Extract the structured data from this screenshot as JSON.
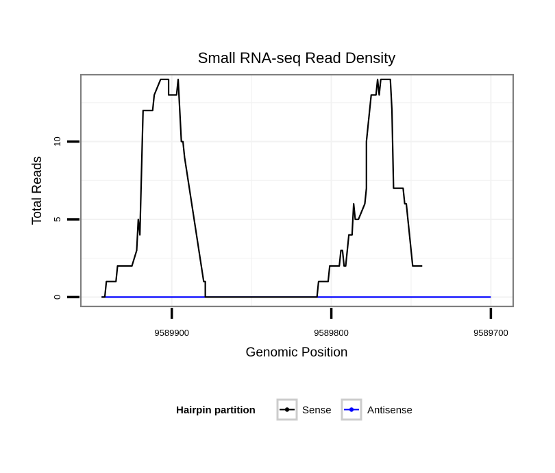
{
  "chart_data": {
    "type": "line",
    "title": "Small RNA-seq Read Density",
    "xlabel": "Genomic Position",
    "ylabel": "Total Reads",
    "xlim": [
      9589957,
      9589686
    ],
    "ylim": [
      -0.6,
      14.3
    ],
    "x_reversed": true,
    "x_ticks": [
      9589900,
      9589800,
      9589700
    ],
    "x_tick_labels": [
      "9589900",
      "9589800",
      "9589700"
    ],
    "y_ticks": [
      0,
      5,
      10
    ],
    "y_tick_labels": [
      "0",
      "5",
      "10"
    ],
    "grid": true,
    "legend": {
      "title": "Hairpin partition",
      "position": "bottom",
      "entries": [
        "Sense",
        "Antisense"
      ]
    },
    "colors": {
      "Sense": "#000000",
      "Antisense": "#0000ff",
      "panel_border": "#7f7f7f",
      "grid": "#f2f2f2"
    },
    "series": [
      {
        "name": "Sense",
        "x": [
          9589944,
          9589942,
          9589941,
          9589935,
          9589934,
          9589925,
          9589922,
          9589921,
          9589920,
          9589919,
          9589918,
          9589912,
          9589911,
          9589907,
          9589906,
          9589902,
          9589902,
          9589900,
          9589897,
          9589896,
          9589895,
          9589894,
          9589893,
          9589892,
          9589880,
          9589879,
          9589879,
          9589878,
          9589826,
          9589825,
          9589824,
          9589817,
          9589816,
          9589812,
          9589811,
          9589809,
          9589808,
          9589806,
          9589805,
          9589804,
          9589802,
          9589801,
          9589800,
          9589795,
          9589794,
          9589793,
          9589792,
          9589791,
          9589790,
          9589789,
          9589787,
          9589786,
          9589785,
          9589784,
          9589783,
          9589779,
          9589778,
          9589778,
          9589776,
          9589775,
          9589772,
          9589771,
          9589770,
          9589769,
          9589763,
          9589762,
          9589761,
          9589758,
          9589757,
          9589756,
          9589755,
          9589754,
          9589753,
          9589752,
          9589751,
          9589750,
          9589749,
          9589748,
          9589747,
          9589746,
          9589745,
          9589744,
          9589743
        ],
        "values": [
          0,
          0,
          1,
          1,
          2,
          2,
          3,
          5,
          4,
          8,
          12,
          12,
          13,
          14,
          14,
          14,
          13,
          13,
          13,
          14,
          12,
          10,
          10,
          9,
          1,
          1,
          0,
          0,
          0,
          0,
          0,
          0,
          0,
          0,
          0,
          0,
          1,
          1,
          1,
          1,
          1,
          2,
          2,
          2,
          3,
          3,
          2,
          2,
          3,
          4,
          4,
          6,
          5,
          5,
          5,
          6,
          7,
          10,
          12,
          13,
          13,
          14,
          13,
          14,
          14,
          12,
          7,
          7,
          7,
          7,
          7,
          6,
          6,
          5,
          4,
          3,
          2,
          2,
          2,
          2,
          2,
          2,
          2
        ]
      },
      {
        "name": "Antisense",
        "x": [
          9589944,
          9589700
        ],
        "values": [
          0,
          0
        ]
      }
    ]
  }
}
